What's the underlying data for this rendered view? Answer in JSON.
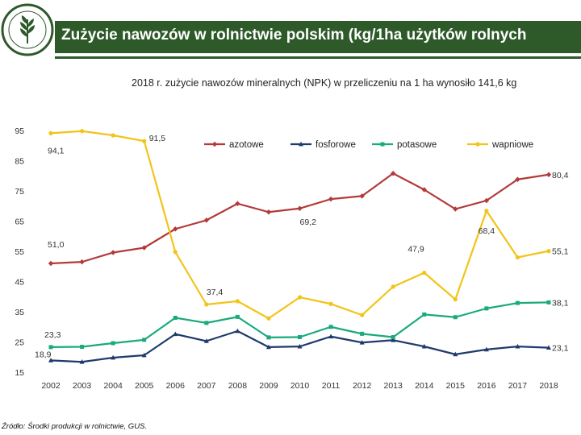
{
  "header": {
    "title": "Zużycie nawozów w rolnictwie polskim (kg/1ha użytków rolnych",
    "logo_text": "MINISTERSTWO ROLNICTWA I ROZWOJU WSI"
  },
  "subtitle": "2018 r. zużycie nawozów mineralnych (NPK) w przeliczeniu na 1 ha wynosiło 141,6 kg",
  "source": "Źródło: Środki produkcji w rolnictwie, GUS.",
  "colors": {
    "brand": "#2e5a2a",
    "azotowe": "#b33a3a",
    "fosforowe": "#1f3b6b",
    "potasowe": "#1aaa7c",
    "wapniowe": "#f2c418"
  },
  "chart_data": {
    "type": "line",
    "title": "",
    "xlabel": "",
    "ylabel": "",
    "ylim": [
      15,
      95
    ],
    "yticks": [
      95,
      85,
      75,
      65,
      55,
      45,
      35,
      25,
      15
    ],
    "categories": [
      "2002",
      "2003",
      "2004",
      "2005",
      "2006",
      "2007",
      "2008",
      "2009",
      "2010",
      "2011",
      "2012",
      "2013",
      "2014",
      "2015",
      "2016",
      "2017",
      "2018"
    ],
    "series": [
      {
        "name": "azotowe",
        "color": "#b33a3a",
        "marker": "diamond",
        "values": [
          51.0,
          51.5,
          54.6,
          56.2,
          62.4,
          65.3,
          70.8,
          68.0,
          69.2,
          72.3,
          73.3,
          80.8,
          75.4,
          69.0,
          71.8,
          78.8,
          80.4
        ]
      },
      {
        "name": "fosforowe",
        "color": "#1f3b6b",
        "marker": "triangle",
        "values": [
          18.9,
          18.4,
          19.8,
          20.6,
          27.6,
          25.3,
          28.6,
          23.3,
          23.5,
          26.8,
          24.8,
          25.6,
          23.5,
          20.9,
          22.5,
          23.5,
          23.1
        ]
      },
      {
        "name": "potasowe",
        "color": "#1aaa7c",
        "marker": "square",
        "values": [
          23.3,
          23.4,
          24.6,
          25.7,
          33.0,
          31.3,
          33.3,
          26.5,
          26.6,
          30.0,
          27.7,
          26.6,
          34.1,
          33.2,
          36.1,
          37.9,
          38.1
        ]
      },
      {
        "name": "wapniowe",
        "color": "#f2c418",
        "marker": "circle",
        "values": [
          94.1,
          94.8,
          93.4,
          91.5,
          54.8,
          37.4,
          38.5,
          32.8,
          39.8,
          37.6,
          33.9,
          43.3,
          47.9,
          39.1,
          68.4,
          53.0,
          55.1
        ]
      }
    ],
    "data_labels": [
      {
        "series": "wapniowe",
        "index": 0,
        "text": "94,1"
      },
      {
        "series": "wapniowe",
        "index": 3,
        "text": "91,5"
      },
      {
        "series": "azotowe",
        "index": 0,
        "text": "51,0"
      },
      {
        "series": "wapniowe",
        "index": 5,
        "text": "37,4"
      },
      {
        "series": "azotowe",
        "index": 8,
        "text": "69,2"
      },
      {
        "series": "wapniowe",
        "index": 12,
        "text": "47,9"
      },
      {
        "series": "wapniowe",
        "index": 14,
        "text": "68,4"
      },
      {
        "series": "azotowe",
        "index": 16,
        "text": "80,4"
      },
      {
        "series": "wapniowe",
        "index": 16,
        "text": "55,1"
      },
      {
        "series": "potasowe",
        "index": 16,
        "text": "38,1"
      },
      {
        "series": "fosforowe",
        "index": 16,
        "text": "23,1"
      },
      {
        "series": "potasowe",
        "index": 0,
        "text": "23,3"
      },
      {
        "series": "fosforowe",
        "index": 0,
        "text": "18,9"
      }
    ],
    "legend_position": "top"
  }
}
